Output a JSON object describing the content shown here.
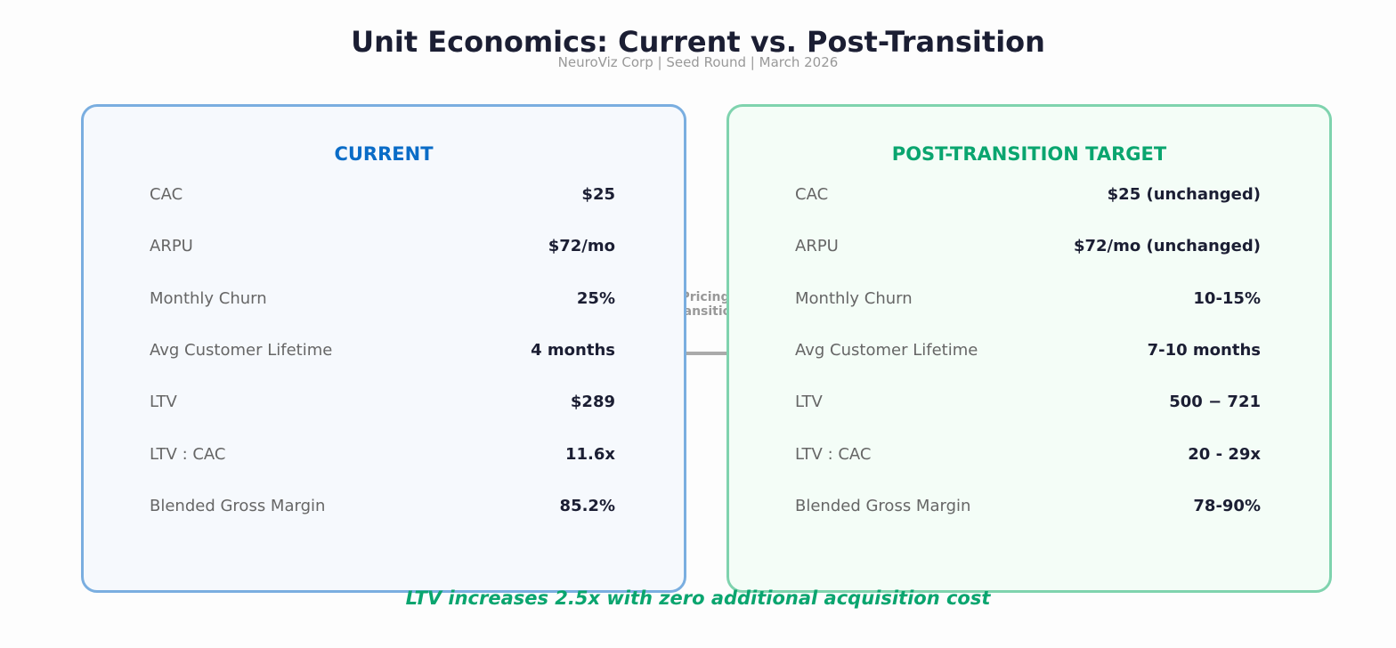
{
  "title": "Unit Economics: Current vs. Post-Transition",
  "subtitle": "NeuroViz Corp  |  Seed Round  |  March 2026",
  "colors": {
    "current": "#0a6cc7",
    "target": "#0aa56f",
    "current_border": "#7aaee0",
    "target_border": "#7fd3ae",
    "arrow": "#aaaaaa"
  },
  "panels": [
    {
      "header": "CURRENT",
      "rows": [
        {
          "label": "CAC",
          "value": "$25"
        },
        {
          "label": "ARPU",
          "value": "$72/mo"
        },
        {
          "label": "Monthly Churn",
          "value": "25%"
        },
        {
          "label": "Avg Customer Lifetime",
          "value": "4 months"
        },
        {
          "label": "LTV",
          "value": "$289"
        },
        {
          "label": "LTV : CAC",
          "value": "11.6x"
        },
        {
          "label": "Blended Gross Margin",
          "value": "85.2%"
        }
      ]
    },
    {
      "header": "POST-TRANSITION TARGET",
      "rows": [
        {
          "label": "CAC",
          "value": "$25 (unchanged)"
        },
        {
          "label": "ARPU",
          "value": "$72/mo (unchanged)"
        },
        {
          "label": "Monthly Churn",
          "value": "10-15%"
        },
        {
          "label": "Avg Customer Lifetime",
          "value": "7-10 months"
        },
        {
          "label": "LTV",
          "value": "500 − 721"
        },
        {
          "label": "LTV : CAC",
          "value": "20 - 29x"
        },
        {
          "label": "Blended Gross Margin",
          "value": "78-90%"
        }
      ]
    }
  ],
  "arrow_label": "Pricing\nTransition",
  "footer": "LTV increases 2.5x with zero additional acquisition cost"
}
